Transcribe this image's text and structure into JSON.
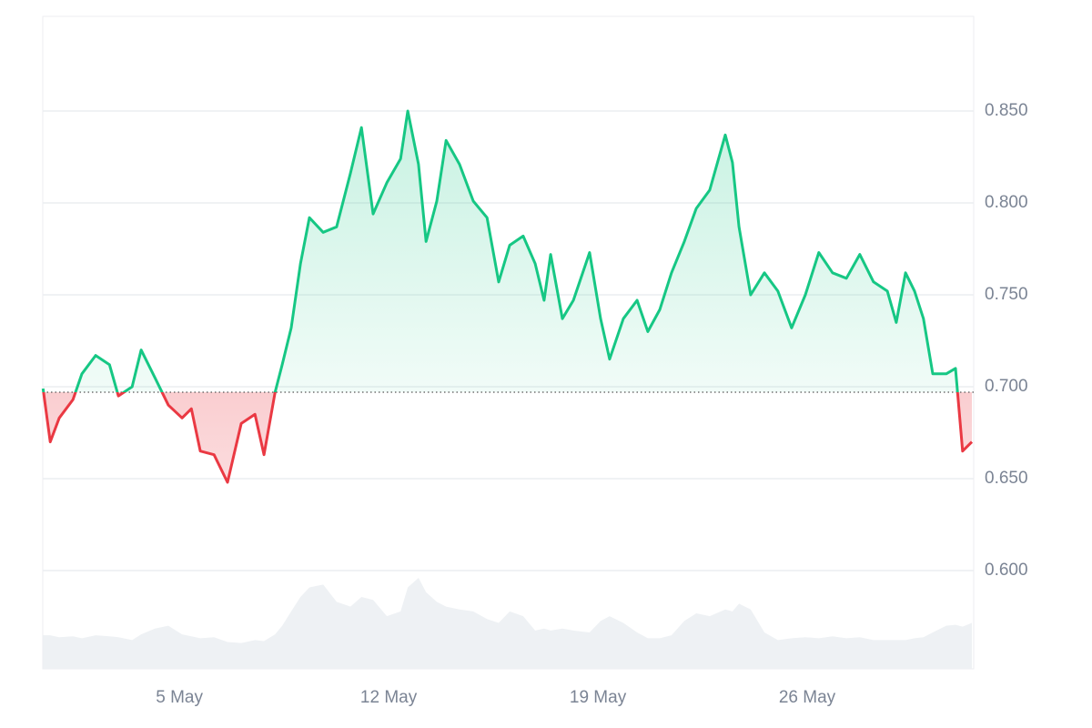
{
  "chart_data": {
    "type": "line",
    "x": [
      0.44,
      0.68,
      0.98,
      1.44,
      1.74,
      2.2,
      2.66,
      2.96,
      3.42,
      3.72,
      4.18,
      4.63,
      5.09,
      5.4,
      5.7,
      6.16,
      6.61,
      7.07,
      7.53,
      7.83,
      8.2,
      8.44,
      8.74,
      9.05,
      9.35,
      9.81,
      10.26,
      10.72,
      11.09,
      11.48,
      11.94,
      12.4,
      12.64,
      13.0,
      13.25,
      13.61,
      13.92,
      14.37,
      14.83,
      15.29,
      15.68,
      16.05,
      16.5,
      16.9,
      17.2,
      17.42,
      17.81,
      18.18,
      18.72,
      19.09,
      19.39,
      19.85,
      20.31,
      20.67,
      21.07,
      21.46,
      21.89,
      22.29,
      22.74,
      23.26,
      23.5,
      23.72,
      24.11,
      24.57,
      25.02,
      25.48,
      25.94,
      26.39,
      26.85,
      27.31,
      27.76,
      28.22,
      28.68,
      28.98,
      29.29,
      29.59,
      29.89,
      30.2,
      30.65,
      30.96,
      31.2,
      31.51
    ],
    "values": [
      0.699,
      0.67,
      0.683,
      0.693,
      0.707,
      0.717,
      0.712,
      0.695,
      0.7,
      0.72,
      0.705,
      0.69,
      0.683,
      0.688,
      0.665,
      0.663,
      0.648,
      0.68,
      0.685,
      0.663,
      0.697,
      0.712,
      0.732,
      0.767,
      0.792,
      0.784,
      0.787,
      0.816,
      0.841,
      0.794,
      0.811,
      0.824,
      0.85,
      0.821,
      0.779,
      0.801,
      0.834,
      0.821,
      0.801,
      0.792,
      0.757,
      0.777,
      0.782,
      0.767,
      0.747,
      0.772,
      0.737,
      0.747,
      0.773,
      0.737,
      0.715,
      0.737,
      0.747,
      0.73,
      0.742,
      0.762,
      0.779,
      0.797,
      0.807,
      0.837,
      0.822,
      0.787,
      0.75,
      0.762,
      0.752,
      0.732,
      0.75,
      0.773,
      0.762,
      0.759,
      0.772,
      0.757,
      0.752,
      0.735,
      0.762,
      0.752,
      0.737,
      0.707,
      0.707,
      0.71,
      0.665,
      0.67
    ],
    "volume": [
      35,
      35,
      33,
      34,
      32,
      35,
      34,
      33,
      30,
      36,
      42,
      45,
      36,
      34,
      32,
      33,
      28,
      27,
      30,
      29,
      36,
      45,
      60,
      75,
      85,
      88,
      70,
      65,
      75,
      72,
      55,
      60,
      85,
      95,
      80,
      70,
      65,
      62,
      60,
      52,
      48,
      60,
      55,
      40,
      42,
      40,
      42,
      40,
      38,
      50,
      55,
      48,
      38,
      32,
      32,
      35,
      50,
      58,
      55,
      62,
      60,
      68,
      62,
      38,
      30,
      32,
      33,
      32,
      34,
      32,
      33,
      30,
      30,
      30,
      30,
      32,
      33,
      38,
      45,
      46,
      44,
      48
    ],
    "baseline": 0.697,
    "up_color": "#16c784",
    "down_color": "#ea3943",
    "volume_color": "#eef1f4",
    "xlim": [
      0.43,
      31.57
    ],
    "xticks": [
      {
        "value": 5,
        "label": "5 May"
      },
      {
        "value": 12,
        "label": "12 May"
      },
      {
        "value": 19,
        "label": "19 May"
      },
      {
        "value": 26,
        "label": "26 May"
      }
    ],
    "ylim": [
      0.5465,
      0.9015
    ],
    "yticks": [
      {
        "value": 0.6,
        "label": "0.600"
      },
      {
        "value": 0.65,
        "label": "0.650"
      },
      {
        "value": 0.7,
        "label": "0.700"
      },
      {
        "value": 0.75,
        "label": "0.750"
      },
      {
        "value": 0.8,
        "label": "0.800"
      },
      {
        "value": 0.85,
        "label": "0.850"
      }
    ],
    "grid": true
  }
}
